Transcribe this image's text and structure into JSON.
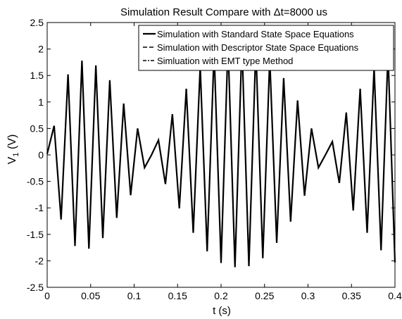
{
  "chart_data": {
    "type": "line",
    "title": "Simulation Result Compare with Δt=8000 us",
    "xlabel": "t (s)",
    "ylabel_main": "V",
    "ylabel_sub": "1",
    "ylabel_unit": " (V)",
    "xlim": [
      0,
      0.4
    ],
    "ylim": [
      -2.5,
      2.5
    ],
    "xticks": [
      0,
      0.05,
      0.1,
      0.15,
      0.2,
      0.25,
      0.3,
      0.35,
      0.4
    ],
    "xtick_labels": [
      "0",
      "0.05",
      "0.1",
      "0.15",
      "0.2",
      "0.25",
      "0.3",
      "0.35",
      "0.4"
    ],
    "yticks": [
      -2.5,
      -2,
      -1.5,
      -1,
      -0.5,
      0,
      0.5,
      1,
      1.5,
      2,
      2.5
    ],
    "ytick_labels": [
      "-2.5",
      "-2",
      "-1.5",
      "-1",
      "-0.5",
      "0",
      "0.5",
      "1",
      "1.5",
      "2",
      "2.5"
    ],
    "grid": false,
    "legend_position": "top-right",
    "x": [
      0,
      0.008,
      0.016,
      0.024,
      0.032,
      0.04,
      0.048,
      0.056,
      0.064,
      0.072,
      0.08,
      0.088,
      0.096,
      0.104,
      0.112,
      0.12,
      0.128,
      0.136,
      0.144,
      0.152,
      0.16,
      0.168,
      0.176,
      0.184,
      0.192,
      0.2,
      0.208,
      0.216,
      0.224,
      0.232,
      0.24,
      0.248,
      0.256,
      0.264,
      0.272,
      0.28,
      0.288,
      0.296,
      0.304,
      0.312,
      0.32,
      0.328,
      0.336,
      0.344,
      0.352,
      0.36,
      0.368,
      0.376,
      0.384,
      0.392,
      0.4
    ],
    "series": [
      {
        "name": "Simulation with Standard State Space Equations",
        "color": "#000000",
        "dash": "solid",
        "values": [
          0.02,
          0.55,
          -1.22,
          1.52,
          -1.72,
          1.78,
          -1.77,
          1.69,
          -1.57,
          1.41,
          -1.19,
          0.97,
          -0.76,
          0.5,
          -0.24,
          0.0,
          0.28,
          -0.55,
          0.77,
          -1.01,
          1.25,
          -1.47,
          1.67,
          -1.82,
          1.96,
          -2.04,
          2.1,
          -2.12,
          2.1,
          -2.1,
          2.03,
          -1.95,
          1.82,
          -1.66,
          1.45,
          -1.26,
          1.03,
          -0.77,
          0.5,
          -0.24,
          0.0,
          0.25,
          -0.53,
          0.8,
          -1.05,
          1.25,
          -1.47,
          1.64,
          -1.8,
          1.92,
          -2.03
        ]
      },
      {
        "name": "Simulation with Descriptor State Space Equations",
        "color": "#000000",
        "dash": "dashed",
        "values": [
          0.02,
          0.55,
          -1.22,
          1.52,
          -1.72,
          1.78,
          -1.77,
          1.69,
          -1.57,
          1.41,
          -1.19,
          0.97,
          -0.76,
          0.5,
          -0.24,
          0.0,
          0.28,
          -0.55,
          0.77,
          -1.01,
          1.25,
          -1.47,
          1.67,
          -1.82,
          1.96,
          -2.04,
          2.1,
          -2.12,
          2.1,
          -2.1,
          2.03,
          -1.95,
          1.82,
          -1.66,
          1.45,
          -1.26,
          1.03,
          -0.77,
          0.5,
          -0.24,
          0.0,
          0.25,
          -0.53,
          0.8,
          -1.05,
          1.25,
          -1.47,
          1.64,
          -1.8,
          1.92,
          -2.03
        ]
      },
      {
        "name": "Simluation with EMT type Method",
        "color": "#000000",
        "dash": "dashdot",
        "values": [
          0.02,
          0.55,
          -1.22,
          1.52,
          -1.72,
          1.78,
          -1.77,
          1.69,
          -1.57,
          1.41,
          -1.19,
          0.97,
          -0.76,
          0.5,
          -0.24,
          0.0,
          0.28,
          -0.55,
          0.77,
          -1.01,
          1.25,
          -1.47,
          1.67,
          -1.82,
          1.96,
          -2.04,
          2.1,
          -2.12,
          2.1,
          -2.1,
          2.03,
          -1.95,
          1.82,
          -1.66,
          1.45,
          -1.26,
          1.03,
          -0.77,
          0.5,
          -0.24,
          0.0,
          0.25,
          -0.53,
          0.8,
          -1.05,
          1.25,
          -1.47,
          1.64,
          -1.8,
          1.92,
          -2.03
        ]
      }
    ]
  }
}
